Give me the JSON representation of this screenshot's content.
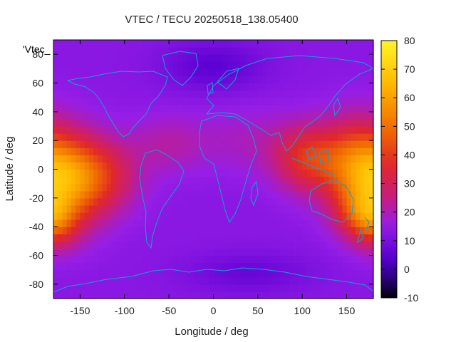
{
  "chart_data": {
    "type": "heatmap",
    "title": "VTEC / TECU 20250518_138.05400",
    "xlabel": "Longitude / deg",
    "ylabel": "Latitude / deg",
    "legend_label": "'Vtec_",
    "xlim": [
      -180,
      180
    ],
    "ylim": [
      -90,
      90
    ],
    "x_ticks": [
      -150,
      -100,
      -50,
      0,
      50,
      100,
      150
    ],
    "y_ticks": [
      -80,
      -60,
      -40,
      -20,
      0,
      20,
      40,
      60,
      80
    ],
    "colorbar": {
      "range": [
        -10,
        80
      ],
      "ticks": [
        -10,
        0,
        10,
        20,
        30,
        40,
        50,
        60,
        70,
        80
      ],
      "palette": "black-blue-purple-red-orange-yellow"
    },
    "grid": false,
    "overlay": "coastlines",
    "features": [
      {
        "lon": -165,
        "lat": -8,
        "sx": 30,
        "sy": 22,
        "amp": 34
      },
      {
        "lon": -125,
        "lat": -4,
        "sx": 30,
        "sy": 18,
        "amp": 17
      },
      {
        "lon": -178,
        "lat": -38,
        "sx": 18,
        "sy": 12,
        "amp": 18
      },
      {
        "lon": 160,
        "lat": 3,
        "sx": 28,
        "sy": 22,
        "amp": 30
      },
      {
        "lon": 105,
        "lat": 8,
        "sx": 26,
        "sy": 16,
        "amp": 23
      },
      {
        "lon": 165,
        "lat": -30,
        "sx": 20,
        "sy": 12,
        "amp": 16
      },
      {
        "lon": -50,
        "lat": 18,
        "sx": 30,
        "sy": 14,
        "amp": 8
      },
      {
        "lon": 40,
        "lat": 20,
        "sx": 40,
        "sy": 16,
        "amp": 6
      },
      {
        "lon": 0,
        "lat": 72,
        "sx": 40,
        "sy": 12,
        "amp": -8
      },
      {
        "lon": 40,
        "lat": -72,
        "sx": 50,
        "sy": 10,
        "amp": -6
      }
    ]
  }
}
